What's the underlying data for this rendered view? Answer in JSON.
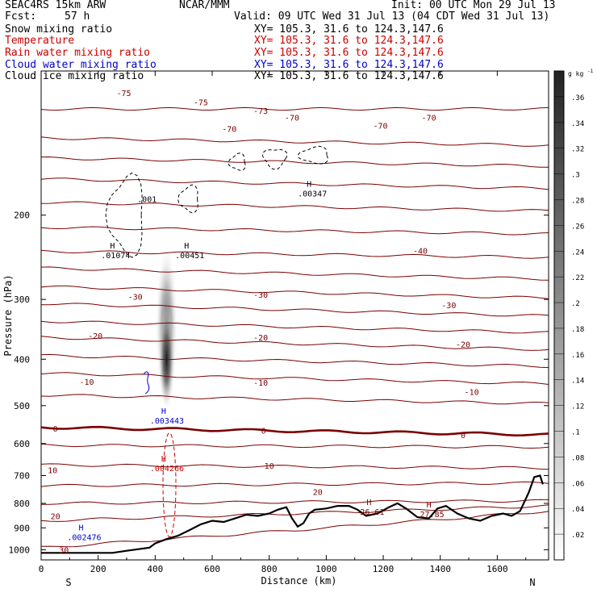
{
  "header": {
    "model": "SEAC4RS 15km ARW",
    "center": "NCAR/MMM",
    "init": "Init: 00 UTC Mon 29 Jul 13",
    "fcst_label": "Fcst:",
    "fcst_value": "57 h",
    "valid": "Valid: 09 UTC Wed 31 Jul 13 (04 CDT Wed 31 Jul 13)"
  },
  "legend": [
    {
      "name": "Snow mixing ratio",
      "xy": "XY= 105.3, 31.6 to 124.3,147.6",
      "color": "#000000"
    },
    {
      "name": "Temperature",
      "xy": "XY= 105.3, 31.6 to 124.3,147.6",
      "color": "#cc0000"
    },
    {
      "name": "Rain water mixing ratio",
      "xy": "XY= 105.3, 31.6 to 124.3,147.6",
      "color": "#cc0000"
    },
    {
      "name": "Cloud water mixing ratio",
      "xy": "XY= 105.3, 31.6 to 124.3,147.6",
      "color": "#0000cc"
    },
    {
      "name": "Cloud ice mixing ratio",
      "xy": "XY= 105.3, 31.6 to 124.3,147.6",
      "color": "#000000"
    }
  ],
  "chart_data": {
    "type": "cross-section",
    "xlabel": "Distance (km)",
    "ylabel": "Pressure (hPa)",
    "xlim": [
      0,
      1780
    ],
    "ylim": [
      1050,
      100
    ],
    "y_log_scale": true,
    "x_ticks": [
      0,
      200,
      400,
      600,
      800,
      1000,
      1200,
      1400,
      1600
    ],
    "y_ticks": [
      200,
      300,
      400,
      500,
      600,
      700,
      800,
      900,
      1000
    ],
    "x_end_labels": {
      "left": "S",
      "right": "N"
    },
    "colorbar": {
      "unit": "g kg",
      "unit_exp": "-1",
      "min": 0,
      "max": 0.38,
      "labels": [
        ".02",
        ".04",
        ".06",
        ".08",
        ".1",
        ".12",
        ".14",
        ".16",
        ".18",
        ".2",
        ".22",
        ".24",
        ".26",
        ".28",
        ".3",
        ".32",
        ".34",
        ".36"
      ]
    },
    "temperature_isotherms": [
      {
        "value": -75,
        "p_west": 120,
        "p_east": 120
      },
      {
        "value": -70,
        "p_west": 138,
        "p_east": 143
      },
      {
        "value": -65,
        "p_west": 152,
        "p_east": 158
      },
      {
        "value": -60,
        "p_west": 168,
        "p_east": 176
      },
      {
        "value": -55,
        "p_west": 188,
        "p_east": 196
      },
      {
        "value": -50,
        "p_west": 212,
        "p_east": 219
      },
      {
        "value": -45,
        "p_west": 238,
        "p_east": 245
      },
      {
        "value": -40,
        "p_west": 258,
        "p_east": 272
      },
      {
        "value": -35,
        "p_west": 282,
        "p_east": 298
      },
      {
        "value": -30,
        "p_west": 306,
        "p_east": 325
      },
      {
        "value": -25,
        "p_west": 333,
        "p_east": 352
      },
      {
        "value": -20,
        "p_west": 360,
        "p_east": 382
      },
      {
        "value": -15,
        "p_west": 393,
        "p_east": 414
      },
      {
        "value": -10,
        "p_west": 428,
        "p_east": 450
      },
      {
        "value": -5,
        "p_west": 475,
        "p_east": 495
      },
      {
        "value": 0,
        "p_west": 555,
        "p_east": 575
      },
      {
        "value": 5,
        "p_west": 605,
        "p_east": 610
      },
      {
        "value": 10,
        "p_west": 665,
        "p_east": 675
      },
      {
        "value": 15,
        "p_west": 735,
        "p_east": 725
      },
      {
        "value": 20,
        "p_west": 800,
        "p_east": 790
      },
      {
        "value": 25,
        "p_west": 870,
        "p_east": 810
      },
      {
        "value": 30,
        "p_west": 990,
        "p_east": 830
      }
    ],
    "contour_labels": [
      {
        "text": "-75",
        "x": 560,
        "p": 116,
        "color": "#7a0000"
      },
      {
        "text": "-75",
        "x": 290,
        "p": 111,
        "color": "#7a0000"
      },
      {
        "text": "-70",
        "x": 660,
        "p": 132,
        "color": "#7a0000"
      },
      {
        "text": "-70",
        "x": 880,
        "p": 125,
        "color": "#7a0000"
      },
      {
        "text": "-73",
        "x": 770,
        "p": 121,
        "color": "#7a0000"
      },
      {
        "text": "-70",
        "x": 1190,
        "p": 130,
        "color": "#7a0000"
      },
      {
        "text": "-70",
        "x": 1360,
        "p": 125,
        "color": "#7a0000"
      },
      {
        "text": "-40",
        "x": 1330,
        "p": 237,
        "color": "#7a0000"
      },
      {
        "text": "-30",
        "x": 330,
        "p": 296,
        "color": "#7a0000"
      },
      {
        "text": "-30",
        "x": 770,
        "p": 293,
        "color": "#7a0000"
      },
      {
        "text": "-30",
        "x": 1430,
        "p": 308,
        "color": "#7a0000"
      },
      {
        "text": "-20",
        "x": 190,
        "p": 357,
        "color": "#7a0000"
      },
      {
        "text": "-20",
        "x": 770,
        "p": 360,
        "color": "#7a0000"
      },
      {
        "text": "-20",
        "x": 1480,
        "p": 372,
        "color": "#7a0000"
      },
      {
        "text": "-10",
        "x": 160,
        "p": 445,
        "color": "#7a0000"
      },
      {
        "text": "-10",
        "x": 770,
        "p": 447,
        "color": "#7a0000"
      },
      {
        "text": "-10",
        "x": 1510,
        "p": 468,
        "color": "#7a0000"
      },
      {
        "text": "0",
        "x": 50,
        "p": 558,
        "color": "#7a0000"
      },
      {
        "text": "0",
        "x": 780,
        "p": 563,
        "color": "#7a0000"
      },
      {
        "text": "0",
        "x": 1480,
        "p": 575,
        "color": "#7a0000"
      },
      {
        "text": "10",
        "x": 40,
        "p": 681,
        "color": "#7a0000"
      },
      {
        "text": "10",
        "x": 800,
        "p": 667,
        "color": "#7a0000"
      },
      {
        "text": "20",
        "x": 970,
        "p": 757,
        "color": "#7a0000"
      },
      {
        "text": "20",
        "x": 50,
        "p": 850,
        "color": "#7a0000"
      },
      {
        "text": "30",
        "x": 80,
        "p": 1000,
        "color": "#7a0000"
      }
    ],
    "extrema": [
      {
        "label": "H",
        "value": ".01074",
        "x": 250,
        "p": 242,
        "color": "#000000"
      },
      {
        "label": "H",
        "value": ".00451",
        "x": 510,
        "p": 242,
        "color": "#000000"
      },
      {
        "label": "H",
        "value": ".00347",
        "x": 940,
        "p": 180,
        "color": "#000000"
      },
      {
        "label": "",
        "value": ".001",
        "x": 360,
        "p": 185,
        "color": "#000000"
      },
      {
        "label": "H",
        "value": ".003443",
        "x": 430,
        "p": 537,
        "color": "#0000cc"
      },
      {
        "label": "H",
        "value": ".004266",
        "x": 430,
        "p": 675,
        "color": "#cc0000"
      },
      {
        "label": "H",
        "value": ".002476",
        "x": 140,
        "p": 940,
        "color": "#0000cc"
      },
      {
        "label": "H",
        "value": "26.61",
        "x": 1150,
        "p": 832,
        "color": "#7a0000"
      },
      {
        "label": "H",
        "value": "27.85",
        "x": 1360,
        "p": 842,
        "color": "#7a0000"
      }
    ],
    "terrain_surface_pressure": [
      {
        "x": 0,
        "p": 1015
      },
      {
        "x": 250,
        "p": 1015
      },
      {
        "x": 300,
        "p": 1005
      },
      {
        "x": 380,
        "p": 990
      },
      {
        "x": 400,
        "p": 970
      },
      {
        "x": 440,
        "p": 950
      },
      {
        "x": 480,
        "p": 935
      },
      {
        "x": 520,
        "p": 910
      },
      {
        "x": 560,
        "p": 885
      },
      {
        "x": 600,
        "p": 870
      },
      {
        "x": 640,
        "p": 875
      },
      {
        "x": 680,
        "p": 860
      },
      {
        "x": 720,
        "p": 845
      },
      {
        "x": 760,
        "p": 850
      },
      {
        "x": 800,
        "p": 840
      },
      {
        "x": 830,
        "p": 825
      },
      {
        "x": 860,
        "p": 815
      },
      {
        "x": 880,
        "p": 860
      },
      {
        "x": 900,
        "p": 895
      },
      {
        "x": 920,
        "p": 880
      },
      {
        "x": 940,
        "p": 840
      },
      {
        "x": 960,
        "p": 825
      },
      {
        "x": 1000,
        "p": 820
      },
      {
        "x": 1040,
        "p": 810
      },
      {
        "x": 1080,
        "p": 810
      },
      {
        "x": 1110,
        "p": 825
      },
      {
        "x": 1140,
        "p": 850
      },
      {
        "x": 1180,
        "p": 840
      },
      {
        "x": 1220,
        "p": 815
      },
      {
        "x": 1250,
        "p": 800
      },
      {
        "x": 1280,
        "p": 820
      },
      {
        "x": 1320,
        "p": 855
      },
      {
        "x": 1360,
        "p": 860
      },
      {
        "x": 1390,
        "p": 820
      },
      {
        "x": 1420,
        "p": 810
      },
      {
        "x": 1460,
        "p": 840
      },
      {
        "x": 1500,
        "p": 860
      },
      {
        "x": 1540,
        "p": 870
      },
      {
        "x": 1580,
        "p": 850
      },
      {
        "x": 1620,
        "p": 840
      },
      {
        "x": 1650,
        "p": 850
      },
      {
        "x": 1680,
        "p": 830
      },
      {
        "x": 1710,
        "p": 760
      },
      {
        "x": 1730,
        "p": 705
      },
      {
        "x": 1750,
        "p": 700
      },
      {
        "x": 1760,
        "p": 730
      }
    ],
    "cloud_ice_shading": {
      "x_center": 440,
      "p_top": 230,
      "p_max": 400,
      "p_bottom": 510,
      "max_value": 0.38
    }
  }
}
